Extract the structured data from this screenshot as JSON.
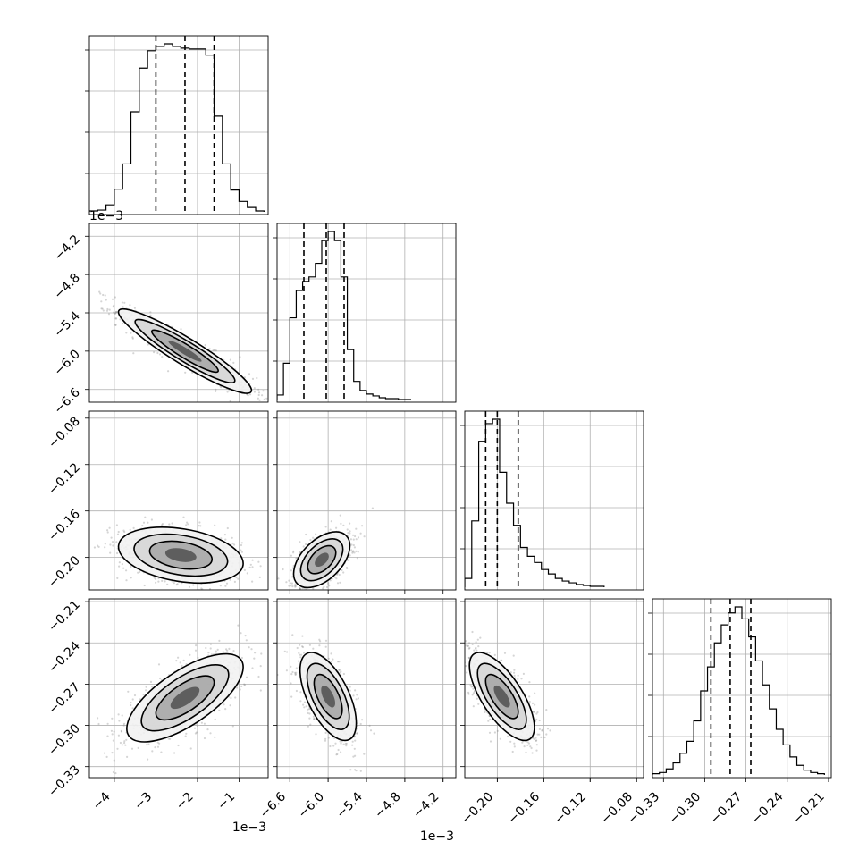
{
  "chart_data": {
    "type": "scatter",
    "plot_kind": "corner",
    "colors": {
      "points": "#888888",
      "contour": "#000000",
      "grid": "#b0b0b0",
      "frame": "#000000"
    },
    "grid": true,
    "quantile_lines": "dashed",
    "parameters": [
      {
        "index": 0,
        "range": [
          -4.6,
          -0.3
        ],
        "ticks": [
          -4,
          -3,
          -2,
          -1
        ],
        "tick_labels": [
          "−4",
          "−3",
          "−2",
          "−1"
        ],
        "offset_label": "1e−3",
        "quantiles": [
          -3.0,
          -2.3,
          -1.6
        ],
        "histogram": {
          "bins": [
            -4.6,
            -4.4,
            -4.2,
            -4.0,
            -3.8,
            -3.6,
            -3.4,
            -3.2,
            -3.0,
            -2.8,
            -2.6,
            -2.4,
            -2.2,
            -2.0,
            -1.8,
            -1.6,
            -1.4,
            -1.2,
            -1.0,
            -0.8,
            -0.6,
            -0.4
          ],
          "counts": [
            1,
            2,
            8,
            26,
            55,
            115,
            165,
            185,
            190,
            193,
            190,
            188,
            187,
            187,
            180,
            110,
            55,
            25,
            12,
            5,
            1
          ]
        }
      },
      {
        "index": 1,
        "range": [
          -6.8,
          -4.0
        ],
        "ticks": [
          -6.6,
          -6.0,
          -5.4,
          -4.8,
          -4.2
        ],
        "tick_labels": [
          "−6.6",
          "−6.0",
          "−5.4",
          "−4.8",
          "−4.2"
        ],
        "offset_label": "1e−3",
        "quantiles": [
          -6.38,
          -6.03,
          -5.75
        ],
        "histogram": {
          "bins": [
            -6.8,
            -6.7,
            -6.6,
            -6.5,
            -6.4,
            -6.3,
            -6.2,
            -6.1,
            -6.0,
            -5.9,
            -5.8,
            -5.7,
            -5.6,
            -5.5,
            -5.4,
            -5.3,
            -5.2,
            -5.1,
            -5.0,
            -4.9,
            -4.8,
            -4.7
          ],
          "counts": [
            5,
            40,
            90,
            120,
            130,
            135,
            150,
            175,
            185,
            175,
            135,
            55,
            20,
            10,
            6,
            4,
            2,
            1,
            1,
            0,
            0
          ]
        }
      },
      {
        "index": 2,
        "range": [
          -0.228,
          -0.074
        ],
        "ticks": [
          -0.2,
          -0.16,
          -0.12,
          -0.08
        ],
        "tick_labels": [
          "−0.20",
          "−0.16",
          "−0.12",
          "−0.08"
        ],
        "tick_labels_left": [
          "−0.08",
          "−0.12",
          "−0.16",
          "−0.20"
        ],
        "quantiles": [
          -0.21,
          -0.2,
          -0.182
        ],
        "histogram": {
          "bins": [
            -0.228,
            -0.222,
            -0.216,
            -0.21,
            -0.204,
            -0.198,
            -0.192,
            -0.186,
            -0.18,
            -0.174,
            -0.168,
            -0.162,
            -0.156,
            -0.15,
            -0.144,
            -0.138,
            -0.132,
            -0.126,
            -0.12,
            -0.114,
            -0.108
          ],
          "counts": [
            10,
            75,
            165,
            185,
            190,
            130,
            95,
            70,
            45,
            35,
            28,
            20,
            15,
            10,
            7,
            5,
            3,
            2,
            1,
            1
          ]
        }
      },
      {
        "index": 3,
        "range": [
          -0.338,
          -0.208
        ],
        "ticks": [
          -0.33,
          -0.3,
          -0.27,
          -0.24,
          -0.21
        ],
        "tick_labels": [
          "−0.33",
          "−0.30",
          "−0.27",
          "−0.24",
          "−0.21"
        ],
        "quantiles": [
          -0.2955,
          -0.2815,
          -0.2665
        ],
        "histogram": {
          "bins": [
            -0.338,
            -0.333,
            -0.328,
            -0.323,
            -0.318,
            -0.313,
            -0.308,
            -0.303,
            -0.298,
            -0.293,
            -0.288,
            -0.283,
            -0.278,
            -0.273,
            -0.268,
            -0.263,
            -0.258,
            -0.253,
            -0.248,
            -0.243,
            -0.238,
            -0.233,
            -0.228,
            -0.223,
            -0.218,
            -0.213
          ],
          "counts": [
            1,
            2,
            5,
            10,
            18,
            28,
            45,
            70,
            90,
            110,
            125,
            135,
            140,
            130,
            115,
            95,
            75,
            55,
            38,
            25,
            15,
            8,
            4,
            2,
            1
          ]
        }
      }
    ],
    "pairs": [
      {
        "x": 0,
        "y": 1,
        "center": [
          -2.3,
          -6.0
        ],
        "spread": [
          0.8,
          0.33
        ],
        "corr": -0.93
      },
      {
        "x": 0,
        "y": 2,
        "center": [
          -2.4,
          -0.198
        ],
        "spread": [
          0.75,
          0.012
        ],
        "corr": -0.3
      },
      {
        "x": 1,
        "y": 2,
        "center": [
          -6.1,
          -0.202
        ],
        "spread": [
          0.22,
          0.012
        ],
        "corr": 0.5
      },
      {
        "x": 0,
        "y": 3,
        "center": [
          -2.3,
          -0.28
        ],
        "spread": [
          0.7,
          0.016
        ],
        "corr": 0.7
      },
      {
        "x": 1,
        "y": 3,
        "center": [
          -6.0,
          -0.279
        ],
        "spread": [
          0.22,
          0.016
        ],
        "corr": -0.6
      },
      {
        "x": 2,
        "y": 3,
        "center": [
          -0.196,
          -0.279
        ],
        "spread": [
          0.014,
          0.016
        ],
        "corr": -0.7
      }
    ]
  }
}
